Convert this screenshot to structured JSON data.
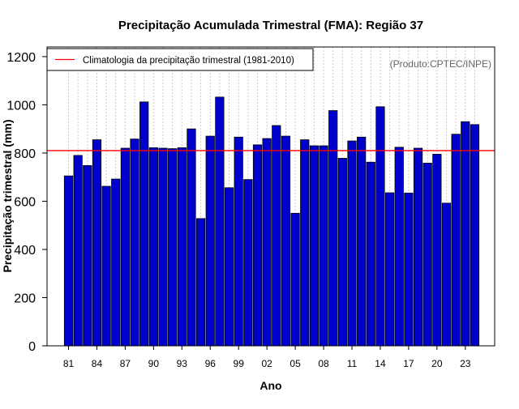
{
  "chart_data": {
    "type": "bar",
    "title": "Precipitação Acumulada Trimestral (FMA): Região 37",
    "xlabel": "Ano",
    "ylabel": "Precipitação trimestral (mm)",
    "credit": "(Produto:CPTEC/INPE)",
    "ylim": [
      0,
      1240
    ],
    "yticks": [
      0,
      200,
      400,
      600,
      800,
      1000,
      1200
    ],
    "categories": [
      1981,
      1982,
      1983,
      1984,
      1985,
      1986,
      1987,
      1988,
      1989,
      1990,
      1991,
      1992,
      1993,
      1994,
      1995,
      1996,
      1997,
      1998,
      1999,
      2000,
      2001,
      2002,
      2003,
      2004,
      2005,
      2006,
      2007,
      2008,
      2009,
      2010,
      2011,
      2012,
      2013,
      2014,
      2015,
      2016,
      2017,
      2018,
      2019,
      2020,
      2021,
      2022,
      2023,
      2024
    ],
    "xtick_labels": [
      {
        "year": 1981,
        "label": "81"
      },
      {
        "year": 1984,
        "label": "84"
      },
      {
        "year": 1987,
        "label": "87"
      },
      {
        "year": 1990,
        "label": "90"
      },
      {
        "year": 1993,
        "label": "93"
      },
      {
        "year": 1996,
        "label": "96"
      },
      {
        "year": 1999,
        "label": "99"
      },
      {
        "year": 2002,
        "label": "02"
      },
      {
        "year": 2005,
        "label": "05"
      },
      {
        "year": 2008,
        "label": "08"
      },
      {
        "year": 2011,
        "label": "11"
      },
      {
        "year": 2014,
        "label": "14"
      },
      {
        "year": 2017,
        "label": "17"
      },
      {
        "year": 2020,
        "label": "20"
      },
      {
        "year": 2023,
        "label": "23"
      }
    ],
    "series": [
      {
        "name": "Precipitação trimestral",
        "values": [
          705,
          790,
          748,
          855,
          662,
          692,
          820,
          858,
          1012,
          822,
          820,
          818,
          822,
          900,
          528,
          870,
          1032,
          656,
          866,
          690,
          834,
          860,
          914,
          870,
          550,
          855,
          830,
          830,
          976,
          778,
          850,
          866,
          762,
          992,
          635,
          824,
          634,
          820,
          758,
          795,
          592,
          878,
          930,
          918
        ]
      }
    ],
    "reference_line": {
      "label": "Climatologia da precipitação trimestral (1981-2010)",
      "value": 810
    },
    "legend_position": "top-left",
    "grid": "vertical dotted",
    "colors": {
      "bar": "#0000cc",
      "reference": "#ff0000",
      "grid": "#cccccc",
      "credit": "#666666"
    }
  }
}
